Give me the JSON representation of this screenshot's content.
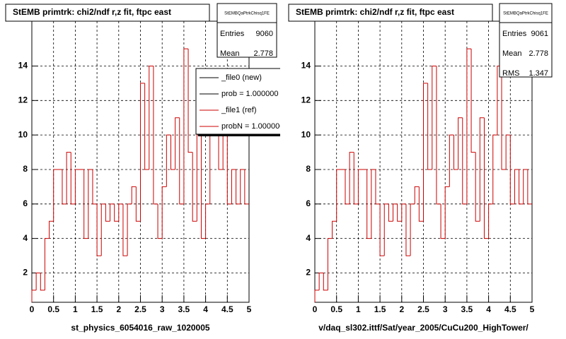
{
  "chart_data": [
    {
      "type": "histogram",
      "title": "StEMB primtrk: chi2/ndf r,z fit, ftpc east",
      "x_label": "st_physics_6054016_raw_1020005",
      "bins": [
        0,
        0.1,
        0.2,
        0.3,
        0.4,
        0.5,
        0.6,
        0.7,
        0.8,
        0.9,
        1,
        1.1,
        1.2,
        1.3,
        1.4,
        1.5,
        1.6,
        1.7,
        1.8,
        1.9,
        2,
        2.1,
        2.2,
        2.3,
        2.4,
        2.5,
        2.6,
        2.7,
        2.8,
        2.9,
        3,
        3.1,
        3.2,
        3.3,
        3.4,
        3.5,
        3.6,
        3.7,
        3.8,
        3.9,
        4,
        4.1,
        4.2,
        4.3,
        4.4,
        4.5,
        4.6,
        4.7,
        4.8,
        4.9,
        5
      ],
      "counts": [
        1,
        2,
        1,
        4,
        5,
        8,
        8,
        6,
        9,
        6,
        8,
        8,
        4,
        8,
        6,
        3,
        6,
        5,
        6,
        5,
        6,
        3,
        6,
        7,
        5,
        13,
        8,
        14,
        6,
        4,
        7,
        10,
        8,
        11,
        6,
        15,
        9,
        5,
        11,
        4,
        6,
        10,
        13,
        8,
        10,
        6,
        8,
        6,
        8,
        6
      ],
      "color": "#cc0000",
      "xlim": [
        0,
        5
      ],
      "ylim": [
        0.3,
        16.6
      ],
      "xticks": [
        0,
        0.5,
        1,
        1.5,
        2,
        2.5,
        3,
        3.5,
        4,
        4.5,
        5
      ],
      "yticks": [
        2,
        4,
        6,
        8,
        10,
        12,
        14
      ],
      "grid": true,
      "stats": {
        "name": "StEMBQaPtrkChisq1FE",
        "rows": [
          {
            "label": "Entries",
            "value": 9060
          },
          {
            "label": "Mean",
            "value": 2.778
          }
        ]
      },
      "legend": [
        {
          "label": "_file0 (new)",
          "color": "#000000"
        },
        {
          "label": "prob = 1.000000",
          "color": "#000000"
        },
        {
          "label": "_file1 (ref)",
          "color": "#cc0000"
        },
        {
          "label": "probN = 1.000000",
          "color": "#cc0000"
        }
      ]
    },
    {
      "type": "histogram",
      "title": "StEMB primtrk: chi2/ndf r,z fit, ftpc east",
      "x_label": "v/daq_sl302.ittf/Sat/year_2005/CuCu200_HighTower/",
      "bins": [
        0,
        0.1,
        0.2,
        0.3,
        0.4,
        0.5,
        0.6,
        0.7,
        0.8,
        0.9,
        1,
        1.1,
        1.2,
        1.3,
        1.4,
        1.5,
        1.6,
        1.7,
        1.8,
        1.9,
        2,
        2.1,
        2.2,
        2.3,
        2.4,
        2.5,
        2.6,
        2.7,
        2.8,
        2.9,
        3,
        3.1,
        3.2,
        3.3,
        3.4,
        3.5,
        3.6,
        3.7,
        3.8,
        3.9,
        4,
        4.1,
        4.2,
        4.3,
        4.4,
        4.5,
        4.6,
        4.7,
        4.8,
        4.9,
        5
      ],
      "counts": [
        1,
        2,
        1,
        4,
        5,
        8,
        8,
        6,
        9,
        6,
        8,
        8,
        4,
        8,
        6,
        3,
        6,
        5,
        6,
        5,
        6,
        3,
        6,
        7,
        5,
        13,
        8,
        14,
        6,
        4,
        7,
        10,
        8,
        11,
        6,
        15,
        9,
        5,
        11,
        4,
        6,
        10,
        14,
        8,
        10,
        6,
        8,
        6,
        8,
        6
      ],
      "color": "#cc0000",
      "xlim": [
        0,
        5
      ],
      "ylim": [
        0.3,
        16.6
      ],
      "xticks": [
        0,
        0.5,
        1,
        1.5,
        2,
        2.5,
        3,
        3.5,
        4,
        4.5,
        5
      ],
      "yticks": [
        2,
        4,
        6,
        8,
        10,
        12,
        14
      ],
      "grid": true,
      "stats": {
        "name": "StEMBQaPtrkChisq1FE",
        "rows": [
          {
            "label": "Entries",
            "value": 9061
          },
          {
            "label": "Mean",
            "value": 2.778
          },
          {
            "label": "RMS",
            "value": 1.347
          }
        ]
      }
    }
  ]
}
